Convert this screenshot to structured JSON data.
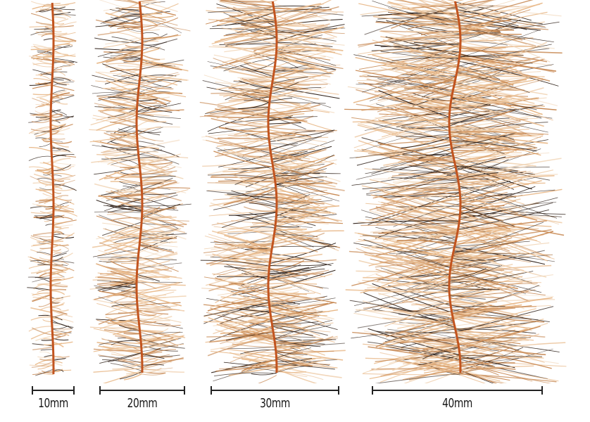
{
  "brushes": [
    {
      "id": "brush-10mm",
      "label": "10mm"
    },
    {
      "id": "brush-20mm",
      "label": "20mm"
    },
    {
      "id": "brush-30mm",
      "label": "30mm"
    },
    {
      "id": "brush-40mm",
      "label": "40mm"
    }
  ],
  "colors": {
    "background": "#ffffff",
    "core_wire": "#c2541f",
    "fiber_light": "#e8b888",
    "fiber_mid": "#c88a55",
    "fiber_dark": "#2a1c14",
    "fiber_pale": "#f1d6b8",
    "scale_bar": "#222222"
  }
}
